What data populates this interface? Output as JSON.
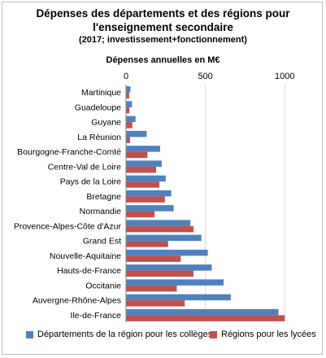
{
  "chart_data": {
    "type": "bar",
    "orientation": "horizontal",
    "title_lines": [
      "Dépenses des départements et des régions pour",
      "l'enseignement secondaire"
    ],
    "subtitle": "(2017; investissement+fonctionnement)",
    "xlabel": "Dépenses annuelles en M€",
    "xlim": [
      0,
      1050
    ],
    "xticks": [
      0,
      500,
      1000
    ],
    "grid": true,
    "legend_position": "bottom",
    "categories": [
      "Martinique",
      "Guadeloupe",
      "Guyane",
      "La Réunion",
      "Bourgogne-Franche-Comté",
      "Centre-Val de Loire",
      "Pays de la Loire",
      "Bretagne",
      "Normandie",
      "Provence-Alpes-Côte d'Azur",
      "Grand Est",
      "Nouvelle-Aquitaine",
      "Hauts-de-France",
      "Occitanie",
      "Auvergne-Rhône-Alpes",
      "Ile-de-France"
    ],
    "series": [
      {
        "name": "Départements de la région pour les collèges",
        "color": "#4f81bd",
        "values": [
          28,
          38,
          60,
          130,
          215,
          225,
          250,
          285,
          300,
          405,
          475,
          515,
          540,
          615,
          660,
          960
        ]
      },
      {
        "name": "Régions pour les lycées",
        "color": "#c0504d",
        "values": [
          20,
          22,
          40,
          25,
          135,
          190,
          210,
          245,
          180,
          425,
          265,
          345,
          425,
          320,
          370,
          1000
        ]
      }
    ]
  }
}
